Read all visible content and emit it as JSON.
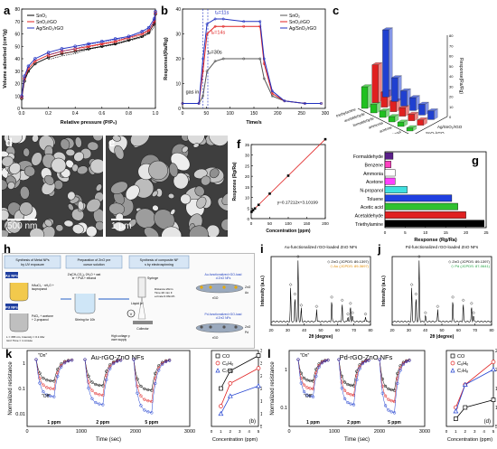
{
  "panel_labels": {
    "a": "a",
    "b": "b",
    "c": "c",
    "d": "d",
    "e": "e",
    "f": "f",
    "g": "g",
    "h": "h",
    "i": "i",
    "j": "j",
    "k": "k",
    "l": "l"
  },
  "chart_data": [
    {
      "id": "a",
      "type": "line",
      "xlabel": "Relative pressure (P/P₀)",
      "ylabel": "Volume adsorbed (cm³/g)",
      "xlim": [
        0,
        1.0
      ],
      "ylim": [
        0,
        80
      ],
      "xticks": [
        "0.0",
        "0.2",
        "0.4",
        "0.6",
        "0.8",
        "1.0"
      ],
      "yticks": [
        "0",
        "10",
        "20",
        "30",
        "40",
        "50",
        "60",
        "70",
        "80"
      ],
      "legend": "top-left",
      "series": [
        {
          "name": "SnO₂",
          "color": "#000000",
          "x": [
            0.0,
            0.02,
            0.05,
            0.1,
            0.2,
            0.3,
            0.4,
            0.5,
            0.6,
            0.7,
            0.8,
            0.9,
            0.95,
            0.99,
            1.0
          ],
          "values": [
            8,
            22,
            30,
            36,
            41,
            44,
            46,
            48,
            50,
            52,
            55,
            58,
            61,
            68,
            76
          ]
        },
        {
          "name": "SnO₂/rGO",
          "color": "#e02020",
          "x": [
            0.0,
            0.02,
            0.05,
            0.1,
            0.2,
            0.3,
            0.4,
            0.5,
            0.6,
            0.7,
            0.8,
            0.9,
            0.95,
            0.99,
            1.0
          ],
          "values": [
            9,
            24,
            32,
            38,
            43,
            46,
            48,
            50,
            52,
            54,
            57,
            60,
            63,
            70,
            77
          ]
        },
        {
          "name": "Ag/SnO₂/rGO",
          "color": "#2030c0",
          "x": [
            0.0,
            0.02,
            0.05,
            0.1,
            0.2,
            0.3,
            0.4,
            0.5,
            0.6,
            0.7,
            0.8,
            0.9,
            0.95,
            0.99,
            1.0
          ],
          "values": [
            10,
            26,
            34,
            40,
            45,
            48,
            50,
            52,
            54,
            56,
            58,
            62,
            65,
            72,
            78
          ]
        }
      ]
    },
    {
      "id": "b",
      "type": "line",
      "xlabel": "Time/s",
      "ylabel": "Response/(Ra/Rg)",
      "xlim": [
        0,
        350
      ],
      "ylim": [
        0,
        40
      ],
      "xticks": [
        "0",
        "50",
        "100",
        "150",
        "200",
        "250",
        "300"
      ],
      "yticks": [
        "0",
        "10",
        "20",
        "30",
        "40"
      ],
      "legend": "top-right",
      "annotations": [
        "tₑ=11s",
        "tₑ=14s",
        "tₑ=30s",
        "gas in"
      ],
      "series": [
        {
          "name": "SnO₂",
          "color": "#555555",
          "x": [
            0,
            40,
            50,
            60,
            80,
            100,
            150,
            190,
            200,
            220,
            250,
            300,
            340
          ],
          "values": [
            2,
            2,
            5,
            15,
            19,
            20,
            20,
            20,
            12,
            5,
            3,
            2,
            2
          ]
        },
        {
          "name": "SnO₂/rGO",
          "color": "#e02020",
          "x": [
            0,
            40,
            50,
            60,
            80,
            100,
            150,
            190,
            200,
            220,
            250,
            300,
            340
          ],
          "values": [
            2,
            2,
            15,
            30,
            33,
            33,
            33,
            33,
            18,
            6,
            3,
            2,
            2
          ]
        },
        {
          "name": "Ag/SnO₂/rGO",
          "color": "#2030c0",
          "x": [
            0,
            40,
            50,
            60,
            80,
            100,
            150,
            190,
            200,
            220,
            250,
            300,
            340
          ],
          "values": [
            2,
            2,
            20,
            34,
            36,
            36,
            35,
            35,
            20,
            7,
            3,
            2,
            2
          ]
        }
      ]
    },
    {
      "id": "c",
      "type": "bar",
      "zlabel": "Response(Ra/Rg)",
      "categories": [
        "triethylamine",
        "acetaldehyde",
        "formaldehyde",
        "ammonia",
        "acetone",
        "methanol"
      ],
      "series": [
        {
          "name": "Ag/SnO₂/rGO",
          "color": "#2040d0",
          "values": [
            62,
            22,
            14,
            12,
            10,
            8
          ]
        },
        {
          "name": "SnO₂/rGO",
          "color": "#e02020",
          "values": [
            35,
            14,
            10,
            8,
            6,
            5
          ]
        },
        {
          "name": "SnO₂",
          "color": "#20c020",
          "values": [
            20,
            8,
            6,
            5,
            4,
            3
          ]
        }
      ],
      "zticks": [
        "0",
        "10",
        "20",
        "30",
        "40",
        "50",
        "60",
        "70",
        "80"
      ]
    },
    {
      "id": "f",
      "type": "scatter",
      "xlabel": "Concentration (ppm)",
      "ylabel": "Response (Rg/Ra)",
      "xlim": [
        0,
        200
      ],
      "ylim": [
        0,
        35
      ],
      "xticks": [
        "0",
        "50",
        "100",
        "150",
        "200"
      ],
      "yticks": [
        "0",
        "5",
        "10",
        "15",
        "20",
        "25",
        "30",
        "35"
      ],
      "equation": "y=0.17212x+3.10199",
      "x": [
        1,
        5,
        10,
        20,
        50,
        100,
        200
      ],
      "values": [
        3.2,
        4.0,
        4.8,
        6.5,
        11.8,
        20.3,
        37.5
      ]
    },
    {
      "id": "g",
      "type": "bar",
      "orientation": "horizontal",
      "xlabel": "Response (Rg/Ra)",
      "xlim": [
        0,
        25
      ],
      "xticks": [
        "0",
        "5",
        "10",
        "15",
        "20",
        "25"
      ],
      "categories": [
        "Formaldehyde",
        "Benzene",
        "Ammonia",
        "Acetone",
        "N-propanol",
        "Toluene",
        "Acetic acid",
        "Acetaldehyde",
        "Triethylamine"
      ],
      "values": [
        2.0,
        1.5,
        2.5,
        2.5,
        5.5,
        16.5,
        18.0,
        20.0,
        24.5
      ],
      "colors": [
        "#5a1f8a",
        "#ff40c0",
        "#ffffff",
        "#ff40ff",
        "#40e0e0",
        "#2040e0",
        "#30c030",
        "#e02020",
        "#000000"
      ]
    },
    {
      "id": "i",
      "type": "line",
      "title": "Au-functionalized rGO-loaded ZnO NFs",
      "xlabel": "2θ (degree)",
      "ylabel": "Intensity (a.u.)",
      "xlim": [
        20,
        80
      ],
      "xticks": [
        "20",
        "30",
        "40",
        "50",
        "60",
        "70",
        "80"
      ],
      "legend_entries": [
        "◇ ZnO (JCPDS: 89-1397)",
        "◇ Au (JCPDS: 89-3697)"
      ],
      "peaks_x": [
        31.8,
        34.4,
        36.3,
        38.2,
        47.5,
        56.6,
        62.9,
        66.4,
        67.9,
        69.1,
        77.0
      ],
      "peaks_y": [
        55,
        40,
        100,
        22,
        20,
        35,
        30,
        8,
        25,
        10,
        8
      ]
    },
    {
      "id": "j",
      "type": "line",
      "title": "Pd-functionalized rGO-loaded ZnO NFs",
      "xlabel": "2θ (degree)",
      "ylabel": "Intensity (a.u.)",
      "xlim": [
        20,
        80
      ],
      "xticks": [
        "20",
        "30",
        "40",
        "50",
        "60",
        "70",
        "80"
      ],
      "legend_entries": [
        "◇ ZnO (JCPDS: 89-1397)",
        "◇ Pd (JCPDS: 87-0641)"
      ],
      "peaks_x": [
        31.8,
        34.4,
        36.3,
        40.1,
        47.5,
        56.6,
        62.9,
        67.9,
        69.1
      ],
      "peaks_y": [
        55,
        40,
        100,
        10,
        20,
        35,
        30,
        25,
        10
      ]
    },
    {
      "id": "k",
      "type": "line",
      "title": "Au-rGO-ZnO NFs",
      "xlabel": "Time (sec)",
      "ylabel": "Normalized resistance",
      "xlim": [
        0,
        3000
      ],
      "xticks": [
        "0",
        "1000",
        "2000",
        "3000"
      ],
      "yticks": [
        "0.01",
        "0.1",
        "1"
      ],
      "annotations": [
        "\"On\"",
        "\"Off\"",
        "1 ppm",
        "2 ppm",
        "5 ppm"
      ],
      "series": [
        {
          "name": "CO",
          "color": "#000000"
        },
        {
          "name": "C₆H₆",
          "color": "#e02020"
        },
        {
          "name": "C₇H₈",
          "color": "#2040d0"
        }
      ]
    },
    {
      "id": "k-inset",
      "type": "line",
      "xlabel": "Concentration (ppm)",
      "ylabel": "Sensor response (Ra/Rg)",
      "xlim": [
        0,
        5
      ],
      "ylim": [
        5,
        35
      ],
      "xticks": [
        "0",
        "1",
        "2",
        "3",
        "4",
        "5"
      ],
      "yticks": [
        "5",
        "10",
        "15",
        "20",
        "25",
        "30",
        "35"
      ],
      "label": "(b)",
      "categories": [
        1,
        2,
        5
      ],
      "series": [
        {
          "name": "CO",
          "color": "#000000",
          "values": [
            20,
            27,
            33
          ]
        },
        {
          "name": "C₆H₆",
          "color": "#e02020",
          "values": [
            13,
            22,
            28
          ]
        },
        {
          "name": "C₇H₈",
          "color": "#2040d0",
          "values": [
            10,
            17,
            21
          ]
        }
      ]
    },
    {
      "id": "l",
      "type": "line",
      "title": "Pd-rGO-ZnO NFs",
      "xlabel": "Time (sec)",
      "ylabel": "Normalized resistance",
      "xlim": [
        0,
        3000
      ],
      "xticks": [
        "0",
        "1000",
        "2000",
        "3000"
      ],
      "yticks": [
        "0.1",
        "1"
      ],
      "annotations": [
        "\"On\"",
        "\"Off\"",
        "1 ppm",
        "2 ppm",
        "5 ppm"
      ],
      "legend_entries": [
        "CO",
        "C₆H₆",
        "C₇H₈"
      ]
    },
    {
      "id": "l-inset",
      "type": "line",
      "xlabel": "Concentration (ppm)",
      "ylabel": "Sensor response (Ra/Rg)",
      "xlim": [
        0,
        5
      ],
      "ylim": [
        5,
        25
      ],
      "xticks": [
        "0",
        "1",
        "2",
        "3",
        "4",
        "5"
      ],
      "yticks": [
        "5",
        "10",
        "15",
        "20",
        "25"
      ],
      "label": "(d)",
      "categories": [
        1,
        2,
        5
      ],
      "series": [
        {
          "name": "CO",
          "color": "#000000",
          "values": [
            7,
            10,
            12
          ]
        },
        {
          "name": "C₆H₆",
          "color": "#e02020",
          "values": [
            10,
            16,
            22
          ]
        },
        {
          "name": "C₇H₈",
          "color": "#2040d0",
          "values": [
            9,
            16,
            20
          ]
        }
      ]
    }
  ],
  "sem": {
    "d_scale": "500 nm",
    "e_scale": "1 μm"
  },
  "schematic": {
    "col1_title": "Synthesis of Metal NPs by UV exposure",
    "col2_title": "Preparation of ZnO precursor solution",
    "col3_title": "Synthesis of composite NFs by electrospinning",
    "au_label": "Au NPs",
    "pd_label": "Pd NPs",
    "au_chem": "HAuCl₄ · nH₂O + isopropanol",
    "pd_chem": "PdCl₂ + acetone + 2-propanol",
    "zn_chem": "Zn(CH₃CO₂)₂·2H₂O + water + PVA + ethanol",
    "stirring": "Stirring for 10h",
    "syringe": "Syringe",
    "liquid_jet": "Liquid jet",
    "spin_params": "Distance:20cm Time:20 min Feed rate:0.03ml/h",
    "hv": "High-voltage power supply",
    "collector": "Collector",
    "out_au": "Au-functionalized rGO-loaded ZnO NFs",
    "out_pd": "Pd-functionalized rGO-loaded ZnO NFs",
    "uv_params": "L = 365 nm, Intensity = 0.1 Mw/cm² Time = 1 minute",
    "rgo": "rGO",
    "zno": "ZnO",
    "au": "Au",
    "pd": "Pd"
  }
}
